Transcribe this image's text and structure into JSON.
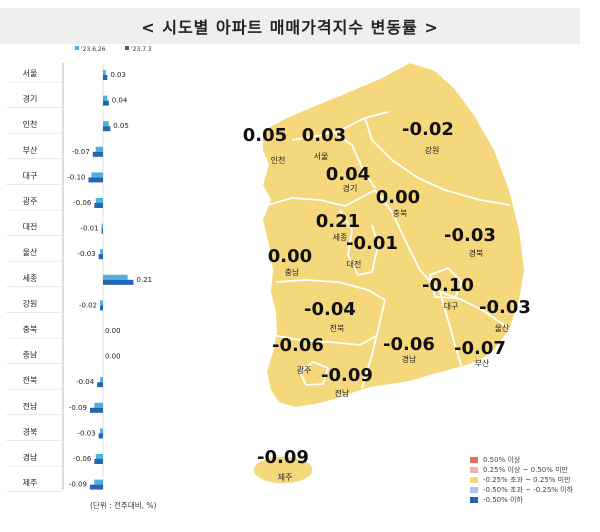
{
  "title": "< 시도별 아파트 매매가격지수 변동률 >",
  "unit_note": "(단위 : 전주대비, %)",
  "chart_data": {
    "type": "bar",
    "orientation": "horizontal",
    "categories": [
      "서울",
      "경기",
      "인천",
      "부산",
      "대구",
      "광주",
      "대전",
      "울산",
      "세종",
      "강원",
      "충북",
      "충남",
      "전북",
      "전남",
      "경북",
      "경남",
      "제주"
    ],
    "series": [
      {
        "name": "'23.6.26",
        "color": "#4fb0e0",
        "values": [
          0.02,
          0.03,
          0.04,
          -0.05,
          -0.08,
          -0.05,
          -0.01,
          -0.02,
          0.17,
          -0.02,
          0.0,
          0.0,
          -0.02,
          -0.06,
          -0.02,
          -0.05,
          -0.06
        ]
      },
      {
        "name": "'23.7.3",
        "color": "#2466b4",
        "values": [
          0.03,
          0.04,
          0.05,
          -0.07,
          -0.1,
          -0.06,
          -0.01,
          -0.03,
          0.21,
          -0.02,
          0.0,
          0.0,
          -0.04,
          -0.09,
          -0.03,
          -0.06,
          -0.09
        ]
      }
    ],
    "value_labels": [
      "0.03",
      "0.04",
      "0.05",
      "-0.07",
      "-0.10",
      "-0.06",
      "-0.01",
      "-0.03",
      "0.21",
      "-0.02",
      "0.00",
      "0.00",
      "-0.04",
      "-0.09",
      "-0.03",
      "-0.06",
      "-0.09"
    ]
  },
  "map": {
    "fill": "#f5d77c",
    "regions": [
      {
        "name": "인천",
        "value": "0.05"
      },
      {
        "name": "서울",
        "value": "0.03"
      },
      {
        "name": "강원",
        "value": "-0.02"
      },
      {
        "name": "경기",
        "value": "0.04"
      },
      {
        "name": "충북",
        "value": "0.00"
      },
      {
        "name": "세종",
        "value": "0.21"
      },
      {
        "name": "대전",
        "value": "-0.01"
      },
      {
        "name": "경북",
        "value": "-0.03"
      },
      {
        "name": "충남",
        "value": "0.00"
      },
      {
        "name": "대구",
        "value": "-0.10"
      },
      {
        "name": "울산",
        "value": "-0.03"
      },
      {
        "name": "전북",
        "value": "-0.04"
      },
      {
        "name": "광주",
        "value": "-0.06"
      },
      {
        "name": "경남",
        "value": "-0.06"
      },
      {
        "name": "부산",
        "value": "-0.07"
      },
      {
        "name": "전남",
        "value": "-0.09"
      },
      {
        "name": "제주",
        "value": "-0.09"
      }
    ]
  },
  "legend": [
    {
      "label": "0.50% 이상",
      "color": "#e56b6b"
    },
    {
      "label": "0.25% 이상 ~ 0.50% 미만",
      "color": "#f2aeb3"
    },
    {
      "label": "-0.25% 초과 ~ 0.25% 미만",
      "color": "#f5d77c"
    },
    {
      "label": "-0.50% 초과 ~ -0.25% 이하",
      "color": "#a9c6e8"
    },
    {
      "label": "-0.50% 이하",
      "color": "#2466b4"
    }
  ]
}
